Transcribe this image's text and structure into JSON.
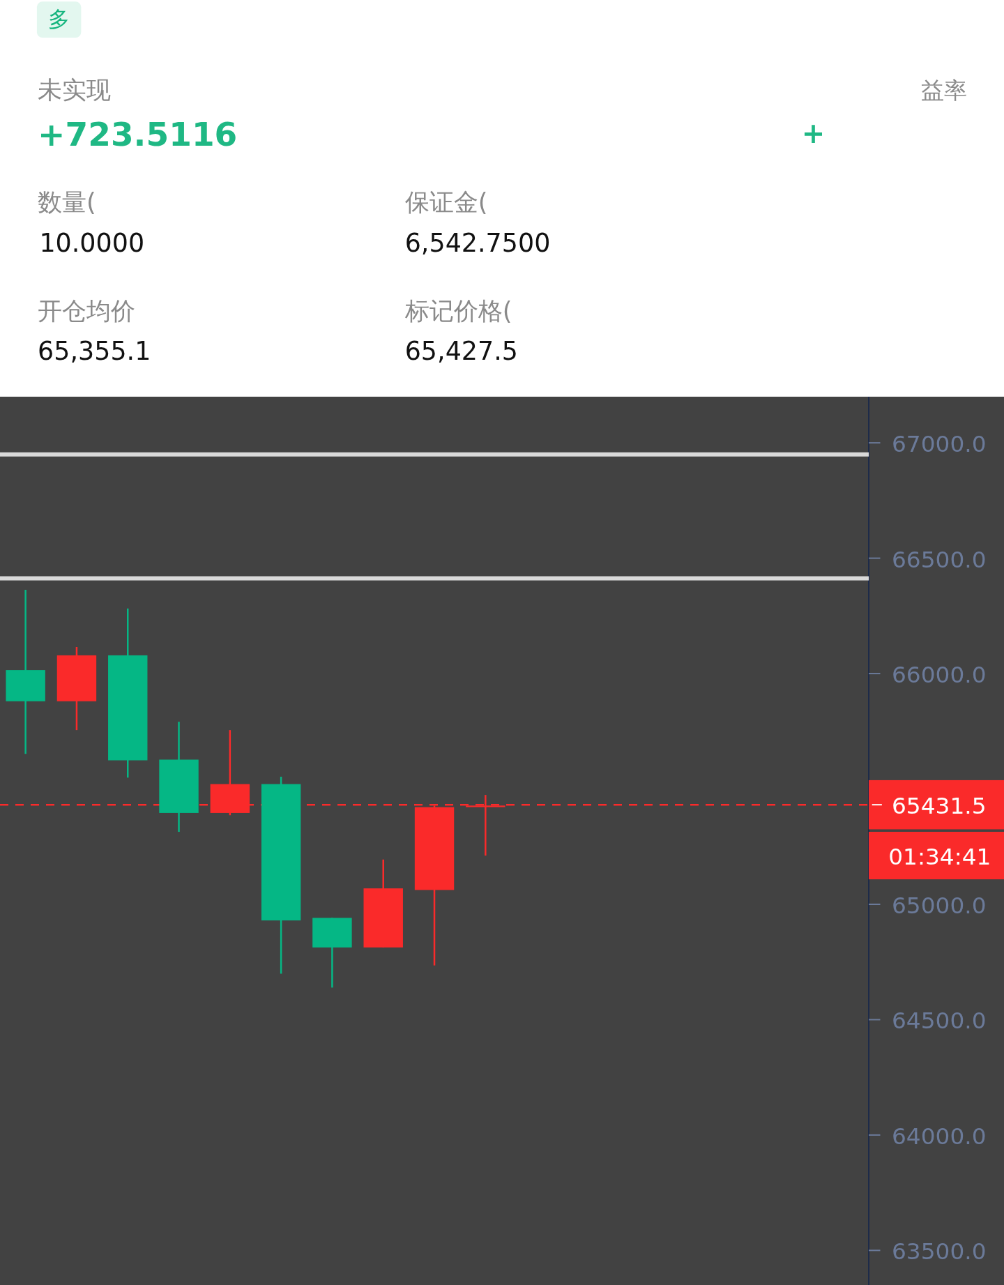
{
  "chart_data": [
    {
      "type": "other",
      "annotations": [
        "多",
        "未实现",
        "+723.5116",
        "益率",
        "+",
        "数量(",
        "10.0000",
        "保证金(",
        "6,542.7500",
        "开仓均价",
        "65,355.1",
        "标记价格(",
        "65,427.5"
      ]
    },
    {
      "type": "candlestick",
      "categories": [
        null,
        null,
        null,
        null,
        null,
        null,
        null,
        null,
        null,
        null,
        null,
        null,
        null,
        null,
        null,
        null,
        null
      ],
      "ohlc": [
        [
          66015,
          66363,
          65652,
          65880
        ],
        [
          65880,
          66115,
          65755,
          66079
        ],
        [
          66079,
          66282,
          65549,
          65624
        ],
        [
          65627,
          65791,
          65314,
          65396
        ],
        [
          65396,
          65755,
          65386,
          65521
        ],
        [
          65521,
          65553,
          64699,
          64930
        ],
        [
          64941,
          64941,
          64639,
          64813
        ],
        [
          64813,
          65194,
          64813,
          65069
        ],
        [
          65062,
          65428,
          64735,
          65421
        ],
        [
          65421,
          65474,
          65211,
          65428
        ],
        null,
        null,
        null,
        null,
        null,
        null,
        null
      ],
      "colors": [
        "#05b785",
        "#fa2a2a",
        "#05b785",
        "#05b785",
        "#fa2a2a",
        "#05b785",
        "#05b785",
        "#fa2a2a",
        "#fa2a2a",
        "#fa2a2a",
        null,
        null,
        null,
        null,
        null,
        null,
        null
      ],
      "ylim": [
        63350,
        67200
      ],
      "yticks": [
        {
          "value": 63500,
          "label": "63500.0"
        },
        {
          "value": 64000,
          "label": "64000.0"
        },
        {
          "value": 64500,
          "label": "64500.0"
        },
        {
          "value": 65000,
          "label": "65000.0"
        },
        {
          "value": 66000,
          "label": "66000.0"
        },
        {
          "value": 66500,
          "label": "66500.0"
        },
        {
          "value": 67000,
          "label": "67000.0"
        }
      ],
      "ref_lines": [
        {
          "axis": "y",
          "value": 66950,
          "color": "#d9d9d9"
        },
        {
          "axis": "y",
          "value": 66413,
          "color": "#d9d9d9"
        },
        {
          "axis": "y",
          "value": 65431.5,
          "label": "65431.5",
          "color": "#fa2a2a",
          "line_style": "dashed"
        }
      ],
      "annotations": [
        "01:34:41"
      ],
      "grid": false
    }
  ]
}
